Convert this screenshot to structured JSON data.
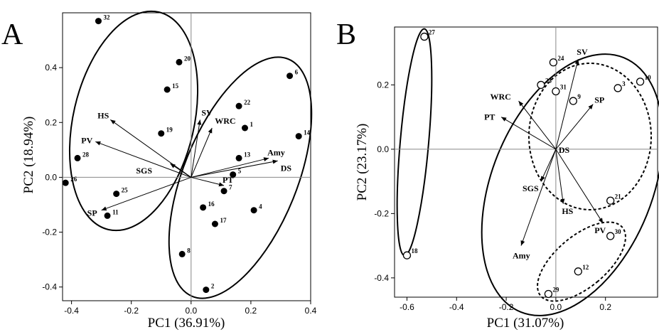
{
  "chart_data": [
    {
      "panel": "A",
      "type": "scatter",
      "xlabel": "PC1 (36.91%)",
      "ylabel": "PC2 (18.94%)",
      "xlim": [
        -0.43,
        0.4
      ],
      "ylim": [
        -0.45,
        0.6
      ],
      "xticks": [
        -0.4,
        -0.2,
        0.0,
        0.2,
        0.4
      ],
      "yticks": [
        -0.4,
        -0.2,
        0.0,
        0.2,
        0.4
      ],
      "tick_labels_x": [
        "-0.4",
        "-0.2",
        "0.0",
        "0.2",
        "0.4"
      ],
      "tick_labels_y": [
        "-0.4",
        "-0.2",
        "0.0",
        "0.2",
        "0.4"
      ],
      "grid": false,
      "marker": "filled",
      "points": [
        {
          "label": "32",
          "x": -0.31,
          "y": 0.57
        },
        {
          "label": "20",
          "x": -0.04,
          "y": 0.42
        },
        {
          "label": "15",
          "x": -0.08,
          "y": 0.32
        },
        {
          "label": "19",
          "x": -0.1,
          "y": 0.16
        },
        {
          "label": "28",
          "x": -0.38,
          "y": 0.07
        },
        {
          "label": "26",
          "x": -0.42,
          "y": -0.02
        },
        {
          "label": "25",
          "x": -0.25,
          "y": -0.06
        },
        {
          "label": "11",
          "x": -0.28,
          "y": -0.14
        },
        {
          "label": "6",
          "x": 0.33,
          "y": 0.37
        },
        {
          "label": "22",
          "x": 0.16,
          "y": 0.26
        },
        {
          "label": "1",
          "x": 0.18,
          "y": 0.18
        },
        {
          "label": "14",
          "x": 0.36,
          "y": 0.15
        },
        {
          "label": "13",
          "x": 0.16,
          "y": 0.07
        },
        {
          "label": "5",
          "x": 0.14,
          "y": 0.01
        },
        {
          "label": "7",
          "x": 0.11,
          "y": -0.05
        },
        {
          "label": "16",
          "x": 0.04,
          "y": -0.11
        },
        {
          "label": "4",
          "x": 0.21,
          "y": -0.12
        },
        {
          "label": "17",
          "x": 0.08,
          "y": -0.17
        },
        {
          "label": "8",
          "x": -0.03,
          "y": -0.28
        },
        {
          "label": "2",
          "x": 0.05,
          "y": -0.41
        }
      ],
      "vectors": [
        {
          "label": "HS",
          "x": -0.27,
          "y": 0.21
        },
        {
          "label": "SV",
          "x": 0.03,
          "y": 0.21
        },
        {
          "label": "WRC",
          "x": 0.07,
          "y": 0.18
        },
        {
          "label": "PV",
          "x": -0.32,
          "y": 0.13
        },
        {
          "label": "Amy",
          "x": 0.26,
          "y": 0.07
        },
        {
          "label": "DS",
          "x": 0.29,
          "y": 0.06
        },
        {
          "label": "SGS",
          "x": -0.07,
          "y": 0.05
        },
        {
          "label": "PT",
          "x": 0.11,
          "y": -0.03
        },
        {
          "label": "SP",
          "x": -0.3,
          "y": -0.12
        }
      ],
      "ellipses": 2
    },
    {
      "panel": "B",
      "type": "scatter",
      "xlabel": "PC1 (31.07%)",
      "ylabel": "PC2 (23.17%)",
      "xlim": [
        -0.65,
        0.41
      ],
      "ylim": [
        -0.46,
        0.38
      ],
      "xticks": [
        -0.6,
        -0.4,
        -0.2,
        0.0,
        0.2
      ],
      "yticks": [
        -0.4,
        -0.2,
        0.0,
        0.2
      ],
      "tick_labels_x": [
        "-0.6",
        "-0.4",
        "-0.2",
        "0.0",
        "0.2"
      ],
      "tick_labels_y": [
        "-0.4",
        "-0.2",
        "0.0",
        "0.2"
      ],
      "grid": false,
      "marker": "open",
      "points": [
        {
          "label": "27",
          "x": -0.53,
          "y": 0.35
        },
        {
          "label": "18",
          "x": -0.6,
          "y": -0.33
        },
        {
          "label": "24",
          "x": -0.01,
          "y": 0.27
        },
        {
          "label": "23",
          "x": -0.06,
          "y": 0.2
        },
        {
          "label": "31",
          "x": 0.0,
          "y": 0.18
        },
        {
          "label": "9",
          "x": 0.07,
          "y": 0.15
        },
        {
          "label": "3",
          "x": 0.25,
          "y": 0.19
        },
        {
          "label": "10",
          "x": 0.34,
          "y": 0.21
        },
        {
          "label": "21",
          "x": 0.22,
          "y": -0.16
        },
        {
          "label": "30",
          "x": 0.22,
          "y": -0.27
        },
        {
          "label": "12",
          "x": 0.09,
          "y": -0.38
        },
        {
          "label": "29",
          "x": -0.03,
          "y": -0.45
        }
      ],
      "vectors": [
        {
          "label": "SV",
          "x": 0.09,
          "y": 0.28
        },
        {
          "label": "WRC",
          "x": -0.15,
          "y": 0.15
        },
        {
          "label": "SP",
          "x": 0.15,
          "y": 0.14
        },
        {
          "label": "PT",
          "x": -0.22,
          "y": 0.1
        },
        {
          "label": "DS",
          "x": 0.0,
          "y": 0.0
        },
        {
          "label": "SGS",
          "x": -0.06,
          "y": -0.1
        },
        {
          "label": "HS",
          "x": 0.03,
          "y": -0.17
        },
        {
          "label": "PV",
          "x": 0.19,
          "y": -0.23
        },
        {
          "label": "Amy",
          "x": -0.14,
          "y": -0.3
        }
      ],
      "ellipses": 4
    }
  ]
}
